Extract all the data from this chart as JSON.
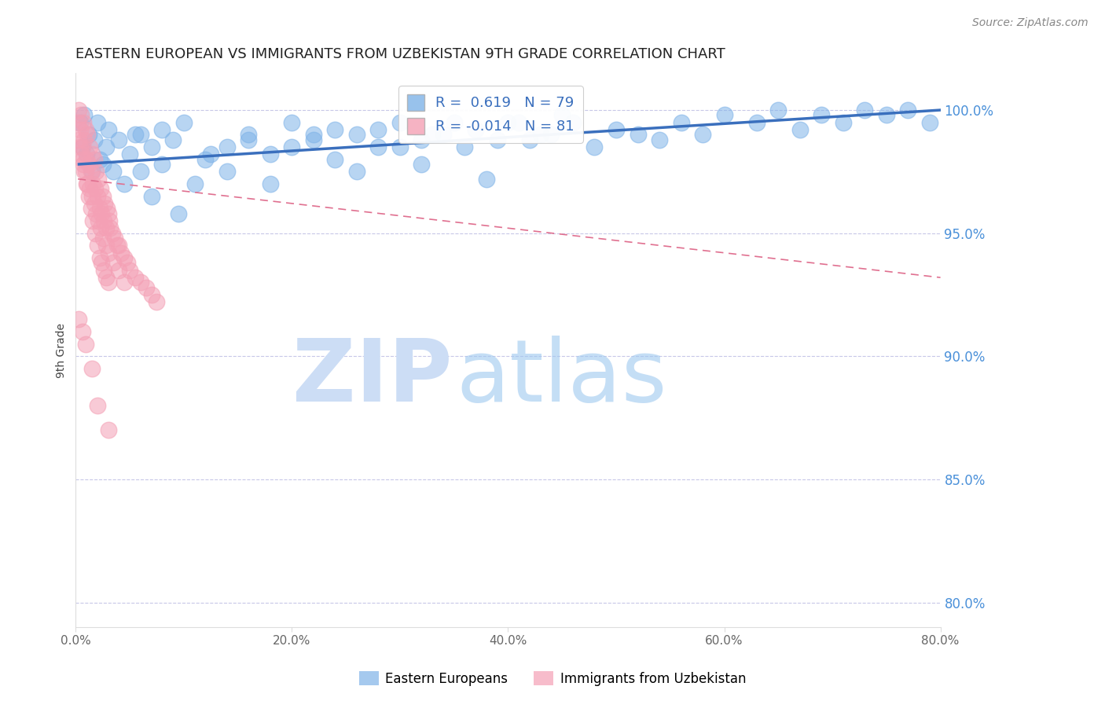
{
  "title": "EASTERN EUROPEAN VS IMMIGRANTS FROM UZBEKISTAN 9TH GRADE CORRELATION CHART",
  "source": "Source: ZipAtlas.com",
  "ylabel": "9th Grade",
  "xlabel_ticks": [
    "0.0%",
    "20.0%",
    "40.0%",
    "60.0%",
    "80.0%"
  ],
  "xlabel_vals": [
    0.0,
    20.0,
    40.0,
    60.0,
    80.0
  ],
  "ylabel_ticks": [
    "80.0%",
    "85.0%",
    "90.0%",
    "95.0%",
    "100.0%"
  ],
  "ylabel_vals": [
    80.0,
    85.0,
    90.0,
    95.0,
    100.0
  ],
  "xlim": [
    0.0,
    80.0
  ],
  "ylim": [
    79.0,
    101.5
  ],
  "blue_R": 0.619,
  "blue_N": 79,
  "pink_R": -0.014,
  "pink_N": 81,
  "blue_color": "#7fb3e8",
  "pink_color": "#f4a0b5",
  "blue_line_color": "#3a6fbd",
  "pink_line_color": "#e07090",
  "grid_color": "#c8c8e8",
  "watermark_zip_color": "#ccddf5",
  "watermark_atlas_color": "#9ec8ef",
  "legend_blue_label": "Eastern Europeans",
  "legend_pink_label": "Immigrants from Uzbekistan",
  "blue_line_x": [
    0.3,
    80.0
  ],
  "blue_line_y": [
    97.8,
    100.0
  ],
  "pink_line_x": [
    0.2,
    80.0
  ],
  "pink_line_y": [
    97.2,
    93.2
  ],
  "blue_scatter_x": [
    0.4,
    0.6,
    0.8,
    1.0,
    1.2,
    1.5,
    1.7,
    2.0,
    2.2,
    2.5,
    2.8,
    3.0,
    3.5,
    4.0,
    4.5,
    5.0,
    5.5,
    6.0,
    7.0,
    8.0,
    9.5,
    11.0,
    12.5,
    14.0,
    16.0,
    18.0,
    20.0,
    22.0,
    24.0,
    26.0,
    28.0,
    30.0,
    32.0,
    34.0,
    36.0,
    38.0,
    40.0,
    42.0,
    44.0,
    46.0,
    48.0,
    50.0,
    52.0,
    54.0,
    56.0,
    58.0,
    60.0,
    63.0,
    65.0,
    67.0,
    69.0,
    71.0,
    73.0,
    75.0,
    77.0,
    79.0,
    6.0,
    7.0,
    8.0,
    9.0,
    10.0,
    12.0,
    14.0,
    16.0,
    18.0,
    20.0,
    22.0,
    24.0,
    26.0,
    28.0,
    30.0,
    32.0,
    33.0,
    35.0,
    37.0,
    39.0,
    41.0,
    43.0,
    45.0
  ],
  "blue_scatter_y": [
    99.5,
    98.5,
    99.8,
    98.2,
    99.0,
    97.5,
    98.8,
    99.5,
    98.0,
    97.8,
    98.5,
    99.2,
    97.5,
    98.8,
    97.0,
    98.2,
    99.0,
    97.5,
    96.5,
    97.8,
    95.8,
    97.0,
    98.2,
    97.5,
    98.8,
    97.0,
    98.5,
    99.0,
    98.0,
    97.5,
    99.2,
    98.5,
    97.8,
    99.0,
    98.5,
    97.2,
    99.5,
    98.8,
    99.0,
    99.5,
    98.5,
    99.2,
    99.0,
    98.8,
    99.5,
    99.0,
    99.8,
    99.5,
    100.0,
    99.2,
    99.8,
    99.5,
    100.0,
    99.8,
    100.0,
    99.5,
    99.0,
    98.5,
    99.2,
    98.8,
    99.5,
    98.0,
    98.5,
    99.0,
    98.2,
    99.5,
    98.8,
    99.2,
    99.0,
    98.5,
    99.5,
    98.8,
    99.0,
    99.5,
    99.2,
    98.8,
    99.5,
    99.0,
    99.8
  ],
  "pink_scatter_x": [
    0.2,
    0.3,
    0.4,
    0.5,
    0.6,
    0.7,
    0.8,
    0.9,
    1.0,
    1.1,
    1.2,
    1.3,
    1.4,
    1.5,
    1.6,
    1.7,
    1.8,
    1.9,
    2.0,
    2.1,
    2.2,
    2.3,
    2.4,
    2.5,
    2.6,
    2.7,
    2.8,
    2.9,
    3.0,
    3.1,
    3.2,
    3.4,
    3.6,
    3.8,
    4.0,
    4.2,
    4.5,
    4.8,
    5.0,
    5.5,
    6.0,
    6.5,
    7.0,
    7.5,
    0.3,
    0.5,
    0.7,
    0.9,
    1.1,
    1.3,
    1.5,
    1.7,
    1.9,
    2.1,
    2.3,
    2.5,
    2.8,
    3.0,
    3.5,
    4.0,
    4.5,
    0.4,
    0.6,
    0.8,
    1.0,
    1.2,
    1.4,
    1.6,
    1.8,
    2.0,
    2.2,
    2.4,
    2.6,
    2.8,
    3.0,
    0.3,
    0.6,
    0.9,
    1.5,
    2.0,
    3.0
  ],
  "pink_scatter_y": [
    99.5,
    100.0,
    99.2,
    99.8,
    98.5,
    99.5,
    98.8,
    99.2,
    98.0,
    99.0,
    97.8,
    98.5,
    97.5,
    98.2,
    97.0,
    98.0,
    96.8,
    97.5,
    96.5,
    97.2,
    96.0,
    96.8,
    95.8,
    96.5,
    95.5,
    96.2,
    95.2,
    96.0,
    95.8,
    95.5,
    95.2,
    95.0,
    94.8,
    94.5,
    94.5,
    94.2,
    94.0,
    93.8,
    93.5,
    93.2,
    93.0,
    92.8,
    92.5,
    92.2,
    98.8,
    98.2,
    97.8,
    97.5,
    97.0,
    96.8,
    96.5,
    96.2,
    95.8,
    95.5,
    95.2,
    94.8,
    94.5,
    94.2,
    93.8,
    93.5,
    93.0,
    98.5,
    98.0,
    97.5,
    97.0,
    96.5,
    96.0,
    95.5,
    95.0,
    94.5,
    94.0,
    93.8,
    93.5,
    93.2,
    93.0,
    91.5,
    91.0,
    90.5,
    89.5,
    88.0,
    87.0
  ]
}
